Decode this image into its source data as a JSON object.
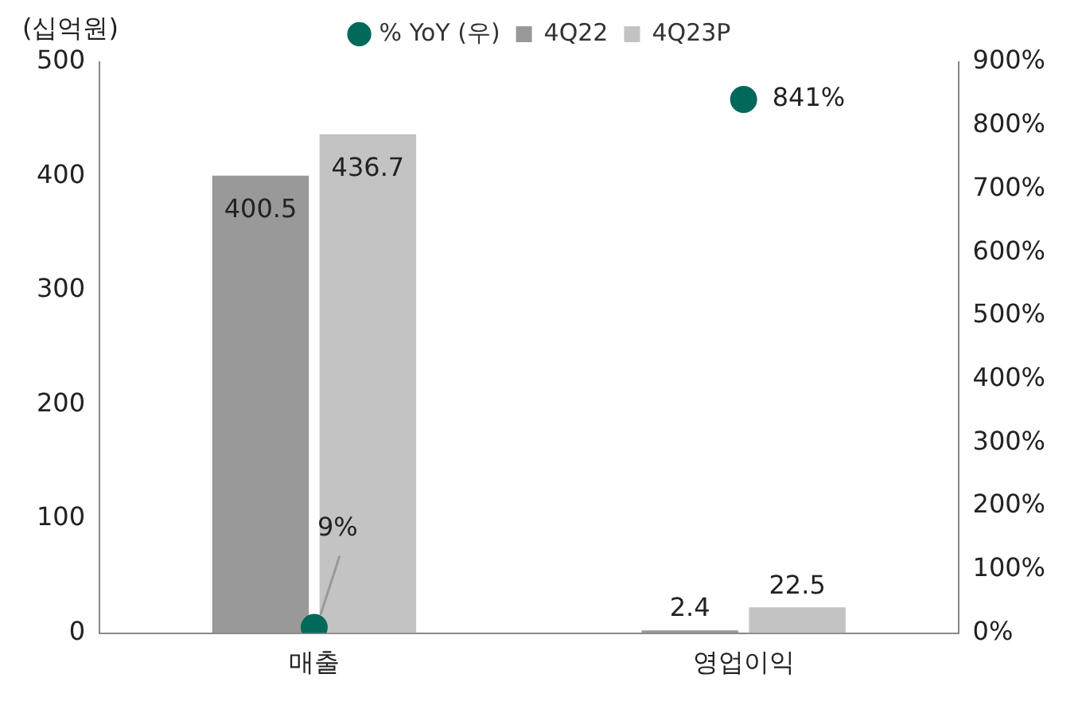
{
  "chart_data": {
    "type": "bar",
    "ylabel": "(십억원)",
    "categories": [
      "매출",
      "영업이익"
    ],
    "series": [
      {
        "name": "4Q22",
        "color": "#999999",
        "values": [
          400.5,
          2.4
        ]
      },
      {
        "name": "4Q23P",
        "color": "#c3c3c3",
        "values": [
          436.7,
          22.5
        ]
      },
      {
        "name": "% YoY (우)",
        "type": "scatter",
        "axis": "y2",
        "color": "#00695a",
        "values": [
          9,
          841
        ],
        "value_labels": [
          "9%",
          "841%"
        ]
      }
    ],
    "ylim": [
      0,
      500
    ],
    "yticks": [
      0,
      100,
      200,
      300,
      400,
      500
    ],
    "y2lim": [
      0,
      900
    ],
    "y2ticks": [
      {
        "value": 0,
        "label": "0%"
      },
      {
        "value": 100,
        "label": "100%"
      },
      {
        "value": 200,
        "label": "200%"
      },
      {
        "value": 300,
        "label": "300%"
      },
      {
        "value": 400,
        "label": "400%"
      },
      {
        "value": 500,
        "label": "500%"
      },
      {
        "value": 600,
        "label": "600%"
      },
      {
        "value": 700,
        "label": "700%"
      },
      {
        "value": 800,
        "label": "800%"
      },
      {
        "value": 900,
        "label": "900%"
      }
    ],
    "data_labels": true,
    "legend": "top",
    "grid": false,
    "marker": "circle"
  }
}
